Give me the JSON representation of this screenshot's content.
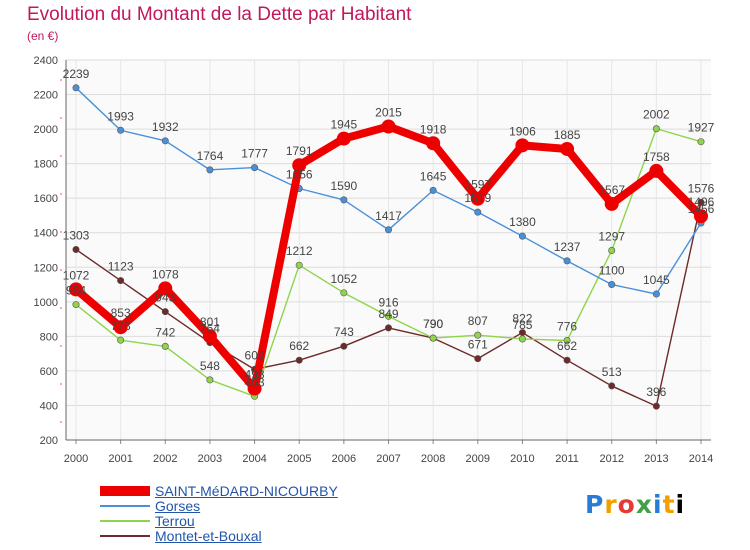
{
  "chart_title": "Evolution du Montant de la Dette par Habitant",
  "chart_subtitle": "(en €)",
  "logo_text": "Proxiti",
  "chart_data": {
    "type": "line",
    "x": [
      2000,
      2001,
      2002,
      2003,
      2004,
      2005,
      2006,
      2007,
      2008,
      2009,
      2010,
      2011,
      2012,
      2013,
      2014
    ],
    "ylim": [
      200,
      2400
    ],
    "yticks": [
      200,
      400,
      600,
      800,
      1000,
      1200,
      1400,
      1600,
      1800,
      2000,
      2200,
      2400
    ],
    "grid": true,
    "legend_position": "bottom-left",
    "series": [
      {
        "name": "SAINT-MéDARD-NICOURBY",
        "color": "#ee0000",
        "values": [
          1072,
          853,
          1078,
          801,
          498,
          1791,
          1945,
          2015,
          1918,
          1597,
          1906,
          1885,
          1567,
          1758,
          1496
        ]
      },
      {
        "name": "Gorses",
        "color": "#4a90d9",
        "values": [
          2239,
          1993,
          1932,
          1764,
          1777,
          1656,
          1590,
          1417,
          1645,
          1519,
          1380,
          1237,
          1100,
          1045,
          1456
        ]
      },
      {
        "name": "Terrou",
        "color": "#8fd44a",
        "values": [
          984,
          778,
          742,
          548,
          453,
          1212,
          1052,
          916,
          790,
          807,
          785,
          776,
          1297,
          2002,
          1927
        ]
      },
      {
        "name": "Montet-et-Bouxal",
        "color": "#6e2a2a",
        "values": [
          1303,
          1123,
          943,
          764,
          609,
          662,
          743,
          849,
          790,
          671,
          822,
          662,
          513,
          396,
          1576
        ]
      }
    ]
  }
}
